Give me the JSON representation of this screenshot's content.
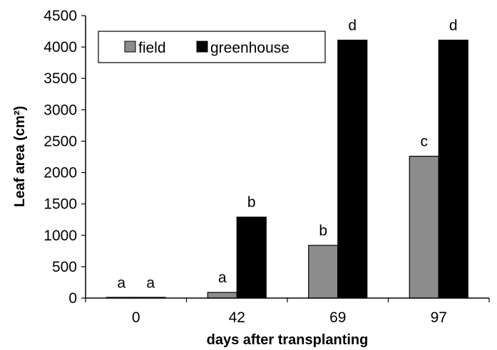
{
  "chart_data": {
    "type": "bar",
    "title": "",
    "xlabel": "days after transplanting",
    "ylabel": "Leaf area (cm²)",
    "ylim": [
      0,
      4500
    ],
    "yticks": [
      0,
      500,
      1000,
      1500,
      2000,
      2500,
      3000,
      3500,
      4000,
      4500
    ],
    "categories": [
      "0",
      "42",
      "69",
      "97"
    ],
    "grid": false,
    "legend_position": "top-left",
    "series": [
      {
        "name": "field",
        "color": "#8c8c8c",
        "values": [
          5,
          90,
          840,
          2260
        ],
        "labels": [
          "a",
          "a",
          "b",
          "c"
        ]
      },
      {
        "name": "greenhouse",
        "color": "#000000",
        "values": [
          5,
          1290,
          4110,
          4110
        ],
        "labels": [
          "a",
          "b",
          "d",
          "d"
        ]
      }
    ]
  }
}
